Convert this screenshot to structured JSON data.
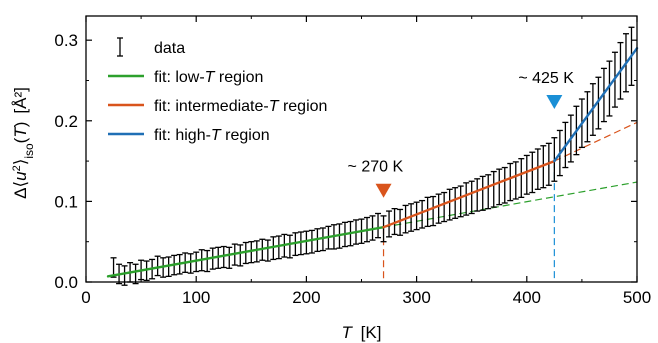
{
  "chart_data": {
    "type": "scatter",
    "xlabel_var": "T",
    "xlabel_unit": "[K]",
    "ylabel": "Δ⟨u²⟩iso(T)  [Å²]",
    "ylabel_parts": {
      "prefix": "Δ⟨",
      "var": "u",
      "sup": "2",
      "mid": "⟩",
      "sub": "iso",
      "arg_open": "(",
      "arg_var": "T",
      "arg_close": ")",
      "unit": "[Å²]"
    },
    "xlim": [
      0,
      500
    ],
    "ylim": [
      0,
      0.33
    ],
    "xticks": [
      0,
      100,
      200,
      300,
      400,
      500
    ],
    "yticks": [
      0.0,
      0.1,
      0.2,
      0.3
    ],
    "ytick_labels": [
      "0.0",
      "0.1",
      "0.2",
      "0.3"
    ],
    "grid": false,
    "legend_position": "top-left",
    "legend": [
      {
        "key": "data",
        "label": "data",
        "kind": "errorbar",
        "color": "#000000"
      },
      {
        "key": "low",
        "label": "fit: low-T region",
        "prefix": "fit: low-",
        "var": "T",
        "suffix": " region",
        "kind": "line",
        "color": "#2ca02c"
      },
      {
        "key": "mid",
        "label": "fit: intermediate-T region",
        "prefix": "fit: intermediate-",
        "var": "T",
        "suffix": " region",
        "kind": "line",
        "color": "#d9541c"
      },
      {
        "key": "high",
        "label": "fit: high-T region",
        "prefix": "fit: high-",
        "var": "T",
        "suffix": " region",
        "kind": "line",
        "color": "#1f6fb5"
      }
    ],
    "data": {
      "x": [
        25,
        30,
        35,
        40,
        45,
        50,
        55,
        60,
        65,
        70,
        75,
        80,
        85,
        90,
        95,
        100,
        105,
        110,
        115,
        120,
        125,
        130,
        135,
        140,
        145,
        150,
        155,
        160,
        165,
        170,
        175,
        180,
        185,
        190,
        195,
        200,
        205,
        210,
        215,
        220,
        225,
        230,
        235,
        240,
        245,
        250,
        255,
        260,
        265,
        270,
        275,
        280,
        285,
        290,
        295,
        300,
        305,
        310,
        315,
        320,
        325,
        330,
        335,
        340,
        345,
        350,
        355,
        360,
        365,
        370,
        375,
        380,
        385,
        390,
        395,
        400,
        405,
        410,
        415,
        420,
        425,
        430,
        435,
        440,
        445,
        450,
        455,
        460,
        465,
        470,
        475,
        480,
        485,
        490,
        495
      ],
      "y": [
        0.018,
        0.01,
        0.008,
        0.012,
        0.01,
        0.015,
        0.014,
        0.016,
        0.02,
        0.018,
        0.019,
        0.021,
        0.022,
        0.024,
        0.023,
        0.025,
        0.027,
        0.026,
        0.029,
        0.03,
        0.031,
        0.03,
        0.034,
        0.033,
        0.036,
        0.037,
        0.038,
        0.04,
        0.039,
        0.042,
        0.043,
        0.045,
        0.044,
        0.047,
        0.048,
        0.049,
        0.05,
        0.052,
        0.053,
        0.055,
        0.056,
        0.057,
        0.059,
        0.06,
        0.062,
        0.063,
        0.065,
        0.067,
        0.07,
        0.066,
        0.072,
        0.075,
        0.074,
        0.078,
        0.08,
        0.082,
        0.084,
        0.087,
        0.088,
        0.091,
        0.093,
        0.096,
        0.098,
        0.1,
        0.103,
        0.105,
        0.108,
        0.11,
        0.112,
        0.115,
        0.118,
        0.12,
        0.124,
        0.126,
        0.129,
        0.133,
        0.136,
        0.14,
        0.143,
        0.146,
        0.152,
        0.16,
        0.17,
        0.178,
        0.188,
        0.197,
        0.205,
        0.214,
        0.222,
        0.232,
        0.24,
        0.251,
        0.262,
        0.272,
        0.28
      ],
      "err": [
        0.012,
        0.012,
        0.012,
        0.012,
        0.012,
        0.012,
        0.012,
        0.012,
        0.012,
        0.012,
        0.012,
        0.012,
        0.012,
        0.012,
        0.012,
        0.012,
        0.013,
        0.013,
        0.013,
        0.013,
        0.013,
        0.013,
        0.013,
        0.013,
        0.013,
        0.013,
        0.013,
        0.013,
        0.013,
        0.014,
        0.014,
        0.014,
        0.014,
        0.014,
        0.014,
        0.014,
        0.014,
        0.014,
        0.014,
        0.014,
        0.015,
        0.015,
        0.015,
        0.015,
        0.015,
        0.015,
        0.015,
        0.015,
        0.015,
        0.016,
        0.016,
        0.016,
        0.016,
        0.017,
        0.017,
        0.017,
        0.017,
        0.018,
        0.018,
        0.018,
        0.018,
        0.019,
        0.019,
        0.019,
        0.02,
        0.02,
        0.02,
        0.021,
        0.021,
        0.022,
        0.022,
        0.022,
        0.023,
        0.023,
        0.024,
        0.024,
        0.025,
        0.025,
        0.026,
        0.026,
        0.027,
        0.028,
        0.028,
        0.029,
        0.03,
        0.03,
        0.031,
        0.032,
        0.032,
        0.033,
        0.034,
        0.034,
        0.035,
        0.036,
        0.036
      ]
    },
    "fits": {
      "low": {
        "color": "#2ca02c",
        "solid": [
          [
            20,
            0.007
          ],
          [
            270,
            0.068
          ]
        ],
        "dashed": [
          [
            270,
            0.068
          ],
          [
            500,
            0.124
          ]
        ]
      },
      "mid": {
        "color": "#d9541c",
        "solid": [
          [
            270,
            0.068
          ],
          [
            425,
            0.15
          ]
        ],
        "dashed": [
          [
            425,
            0.15
          ],
          [
            500,
            0.198
          ]
        ]
      },
      "high": {
        "color": "#1f6fb5",
        "solid": [
          [
            425,
            0.15
          ],
          [
            500,
            0.29
          ]
        ]
      }
    },
    "transitions": [
      {
        "key": "t270",
        "x": 270,
        "y": 0.068,
        "label": "~ 270 K",
        "color": "#d9541c",
        "marker_y": 0.112
      },
      {
        "key": "t425",
        "x": 425,
        "y": 0.15,
        "label": "~ 425 K",
        "color": "#1a8fd6",
        "marker_y": 0.222
      }
    ]
  }
}
